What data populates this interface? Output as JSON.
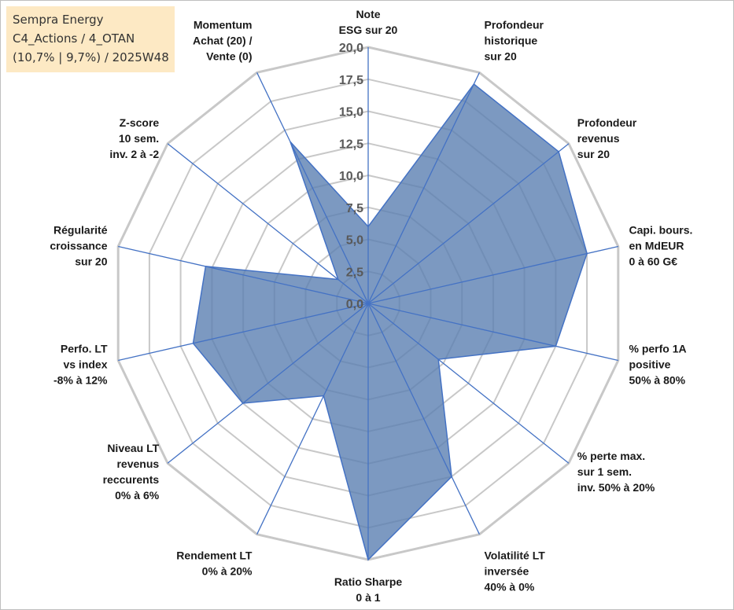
{
  "info": {
    "company": "Sempra Energy",
    "portfolio": "C4_Actions / 4_OTAN",
    "stats": "(10,7% | 9,7%) / 2025W48"
  },
  "chart_data": {
    "type": "radar",
    "title": "",
    "rmax": 20,
    "ticks": [
      "0,0",
      "2,5",
      "5,0",
      "7,5",
      "10,0",
      "12,5",
      "15,0",
      "17,5",
      "20,0"
    ],
    "tick_values": [
      0,
      2.5,
      5,
      7.5,
      10,
      12.5,
      15,
      17.5,
      20
    ],
    "grid": true,
    "colors": {
      "fill": "#5b80b2",
      "line": "#4472c4",
      "grid": "#c8c8c8",
      "spoke": "#4472c4"
    },
    "axes": [
      {
        "label": [
          "Note",
          "ESG sur 20"
        ],
        "value": 6
      },
      {
        "label": [
          "Profondeur",
          "historique",
          "sur 20"
        ],
        "value": 19
      },
      {
        "label": [
          "Profondeur",
          "revenus",
          "sur 20"
        ],
        "value": 19
      },
      {
        "label": [
          "Capi. bours.",
          "en MdEUR",
          "0 à 60 G€"
        ],
        "value": 17.5
      },
      {
        "label": [
          "% perfo 1A",
          "positive",
          "50% à 80%"
        ],
        "value": 15
      },
      {
        "label": [
          "% perte max.",
          "sur 1 sem.",
          "inv. 50% à 20%"
        ],
        "value": 7
      },
      {
        "label": [
          "Volatilité LT",
          "inversée",
          "40% à 0%"
        ],
        "value": 15
      },
      {
        "label": [
          "Ratio Sharpe",
          "0 à 1"
        ],
        "value": 20
      },
      {
        "label": [
          "Rendement LT",
          "0% à 20%"
        ],
        "value": 8
      },
      {
        "label": [
          "Niveau LT",
          "revenus",
          "reccurents",
          "0% à 6%"
        ],
        "value": 12.5
      },
      {
        "label": [
          "Perfo. LT",
          "vs index",
          "-8% à 12%"
        ],
        "value": 14
      },
      {
        "label": [
          "Régularité",
          "croissance",
          "sur 20"
        ],
        "value": 13
      },
      {
        "label": [
          "Z-score",
          "10 sem.",
          "inv. 2 à -2"
        ],
        "value": 3
      },
      {
        "label": [
          "Momentum",
          "Achat (20) /",
          "Vente (0)"
        ],
        "value": 14
      }
    ]
  }
}
